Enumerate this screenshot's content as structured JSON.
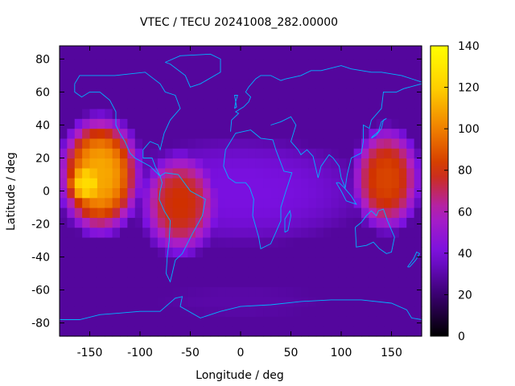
{
  "chart_data": {
    "type": "heatmap",
    "title": "VTEC / TECU 20241008_282.00000",
    "xlabel": "Longitude / deg",
    "ylabel": "Latitude / deg",
    "xlim": [
      -180,
      180
    ],
    "ylim": [
      -88,
      88
    ],
    "x_ticks": [
      -150,
      -100,
      -50,
      0,
      50,
      100,
      150
    ],
    "y_ticks": [
      -80,
      -60,
      -40,
      -20,
      0,
      20,
      40,
      60,
      80
    ],
    "colorbar": {
      "range": [
        0,
        140
      ],
      "ticks": [
        0,
        20,
        40,
        60,
        80,
        100,
        120,
        140
      ],
      "palette": [
        "#000000",
        "#3a0070",
        "#7a10e0",
        "#b020c0",
        "#d03000",
        "#f08000",
        "#ffd000",
        "#ffff00"
      ]
    },
    "grid": false,
    "regions": [
      {
        "lon": [
          -180,
          -100
        ],
        "lat": [
          -25,
          45
        ],
        "value": 110
      },
      {
        "lon": [
          -175,
          -130
        ],
        "lat": [
          -10,
          20
        ],
        "value": 125
      },
      {
        "lon": [
          -100,
          -20
        ],
        "lat": [
          -40,
          25
        ],
        "value": 80
      },
      {
        "lon": [
          -180,
          180
        ],
        "lat": [
          -45,
          45
        ],
        "value": 40
      },
      {
        "lon": [
          110,
          180
        ],
        "lat": [
          -25,
          40
        ],
        "value": 85
      },
      {
        "lon": [
          -180,
          180
        ],
        "lat": [
          -88,
          -45
        ],
        "value": 30
      },
      {
        "lon": [
          60,
          110
        ],
        "lat": [
          55,
          80
        ],
        "value": 20
      },
      {
        "lon": [
          0,
          60
        ],
        "lat": [
          -60,
          -30
        ],
        "value": 22
      }
    ]
  }
}
